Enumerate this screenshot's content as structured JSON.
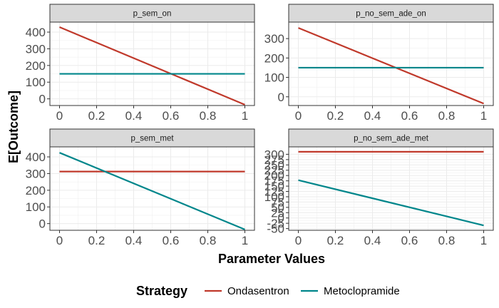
{
  "chart_data": {
    "type": "line",
    "xlabel": "Parameter Values",
    "ylabel": "E[Outcome]",
    "legend": {
      "title": "Strategy",
      "position": "bottom",
      "entries": [
        {
          "name": "Ondasentron",
          "color": "#c0392b"
        },
        {
          "name": "Metoclopramide",
          "color": "#00868b"
        }
      ]
    },
    "grid": true,
    "x_ticks": [
      "0",
      "0.2",
      "0.4",
      "0.6",
      "0.8",
      "1"
    ],
    "xlim": [
      0,
      1
    ],
    "panels": [
      {
        "title": "p_sem_on",
        "ylim": [
          -40,
          460
        ],
        "y_ticks": [
          0,
          100,
          200,
          300,
          400
        ],
        "series": [
          {
            "name": "Ondasentron",
            "color": "#c0392b",
            "x": [
              0,
              1
            ],
            "y": [
              430,
              -35
            ]
          },
          {
            "name": "Metoclopramide",
            "color": "#00868b",
            "x": [
              0,
              1
            ],
            "y": [
              150,
              150
            ]
          }
        ]
      },
      {
        "title": "p_no_sem_ade_on",
        "ylim": [
          -45,
          385
        ],
        "y_ticks": [
          0,
          100,
          200,
          300
        ],
        "series": [
          {
            "name": "Ondasentron",
            "color": "#c0392b",
            "x": [
              0,
              1
            ],
            "y": [
              355,
              -35
            ]
          },
          {
            "name": "Metoclopramide",
            "color": "#00868b",
            "x": [
              0,
              1
            ],
            "y": [
              150,
              150
            ]
          }
        ]
      },
      {
        "title": "p_sem_met",
        "ylim": [
          -40,
          460
        ],
        "y_ticks": [
          0,
          100,
          200,
          300,
          400
        ],
        "series": [
          {
            "name": "Ondasentron",
            "color": "#c0392b",
            "x": [
              0,
              1
            ],
            "y": [
              312,
              312
            ]
          },
          {
            "name": "Metoclopramide",
            "color": "#00868b",
            "x": [
              0,
              1
            ],
            "y": [
              425,
              -35
            ]
          }
        ]
      },
      {
        "title": "p_no_sem_ade_met",
        "ylim": [
          -58,
          335
        ],
        "y_ticks": [
          -50,
          -25,
          0,
          25,
          50,
          75,
          100,
          125,
          150,
          175,
          200,
          225,
          250,
          275,
          300
        ],
        "series": [
          {
            "name": "Ondasentron",
            "color": "#c0392b",
            "x": [
              0,
              1
            ],
            "y": [
              312,
              312
            ]
          },
          {
            "name": "Metoclopramide",
            "color": "#00868b",
            "x": [
              0,
              1
            ],
            "y": [
              178,
              -35
            ]
          }
        ]
      }
    ]
  }
}
